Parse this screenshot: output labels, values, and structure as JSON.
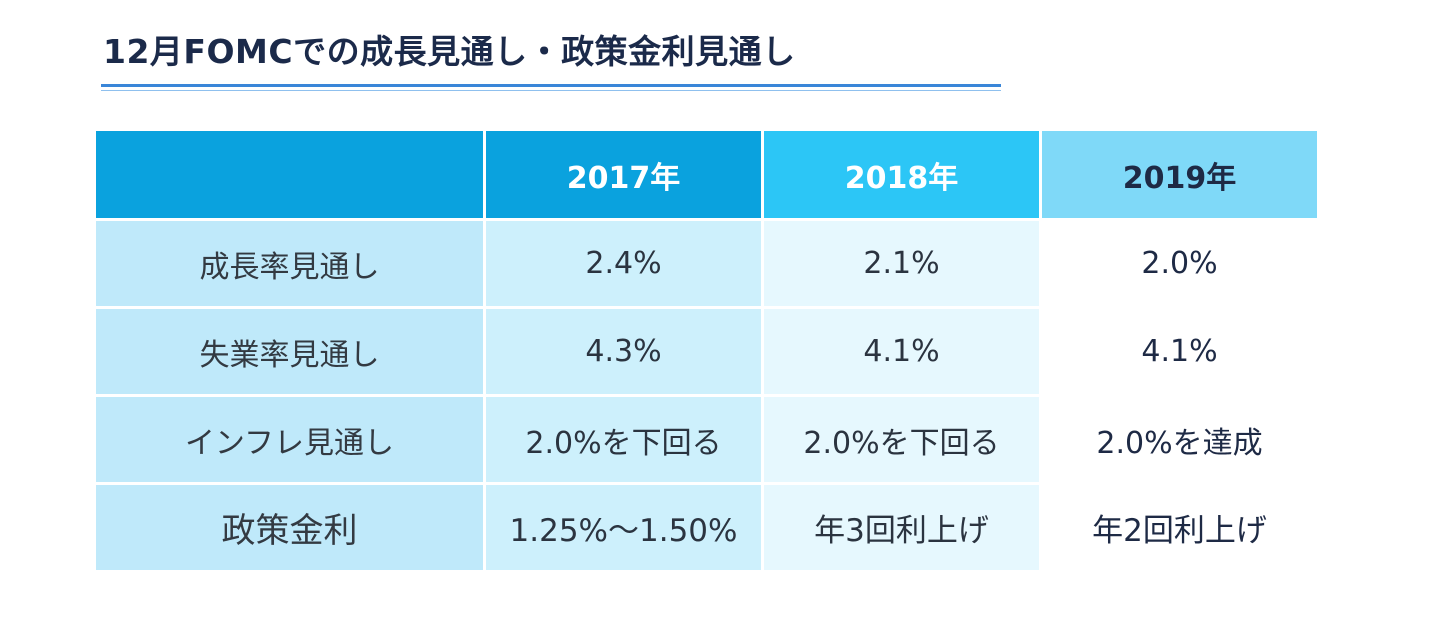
{
  "title": "12月FOMCでの成長見通し・政策金利見通し",
  "colors": {
    "title": "#1b2a4a",
    "title_rule": "#3a86d8",
    "header_label": "#0aa2de",
    "header_2017": "#0aa2de",
    "header_2018": "#2cc6f6",
    "header_2019": "#7fd9f8",
    "label_cells": "#bfe9fa",
    "col_2017": "#cdf0fc",
    "col_2018": "#e6f8fe",
    "col_2019": "#ffffff"
  },
  "chart_data": {
    "type": "table",
    "columns": [
      "",
      "2017年",
      "2018年",
      "2019年"
    ],
    "rows": [
      {
        "label": "成長率見通し",
        "values": [
          "2.4%",
          "2.1%",
          "2.0%"
        ]
      },
      {
        "label": "失業率見通し",
        "values": [
          "4.3%",
          "4.1%",
          "4.1%"
        ]
      },
      {
        "label": "インフレ見通し",
        "values": [
          "2.0%を下回る",
          "2.0%を下回る",
          "2.0%を達成"
        ]
      },
      {
        "label": "政策金利",
        "values": [
          "1.25%～1.50%",
          "年3回利上げ",
          "年2回利上げ"
        ]
      }
    ]
  }
}
